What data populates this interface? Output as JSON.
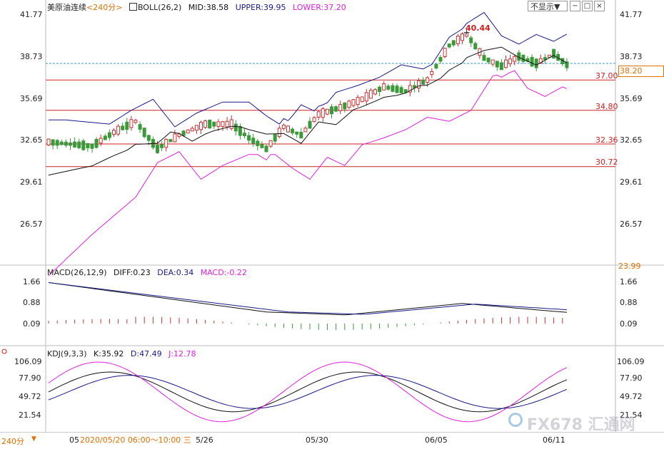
{
  "symbol_title": "美原油连续",
  "period_title": "<240分>",
  "boll": {
    "label": "BOLL(26,2)",
    "mid": "MID:38.58",
    "upper": "UPPER:39.95",
    "lower": "LOWER:37.20"
  },
  "toolbar": {
    "hide_dropdown": "不显示▼",
    "btn_minimize": "−",
    "btn_maximize": "□",
    "btn_close": "×"
  },
  "price_axis": {
    "left": [
      "41.77",
      "38.73",
      "35.69",
      "32.65",
      "29.61",
      "26.57"
    ],
    "right": [
      "41.77",
      "38.73",
      "35.69",
      "32.65",
      "29.61",
      "26.57",
      "23.99"
    ],
    "current_price": "38.20"
  },
  "levels": [
    "37.00",
    "34.80",
    "32.36",
    "30.72"
  ],
  "high_marker": "40.44",
  "macd": {
    "label": "MACD(26,12,9)",
    "diff": "DIFF:0.23",
    "dea": "DEA:0.34",
    "macd": "MACD:-0.22",
    "axis": [
      "1.66",
      "0.88",
      "0.09"
    ]
  },
  "kdj": {
    "label": "KDJ(9,3,3)",
    "k": "K:35.92",
    "d": "D:47.49",
    "j": "J:12.78",
    "axis": [
      "106.09",
      "77.90",
      "49.72",
      "21.54"
    ]
  },
  "footer": {
    "period": "240分",
    "period_dd": "▼",
    "cursor_date": "2020/05/20 06:00～10:00 三",
    "dates": [
      "05",
      "5/26",
      "05/30",
      "06/05",
      "06/11"
    ]
  },
  "watermark": "FX678 汇通网",
  "colors": {
    "up": "#c83232",
    "down": "#3a9a3a",
    "upper_band": "#1a1a8c",
    "lower_band": "#e020e0",
    "mid_band": "#111111",
    "level_line": "#cc2222",
    "accent": "#e07000"
  }
}
